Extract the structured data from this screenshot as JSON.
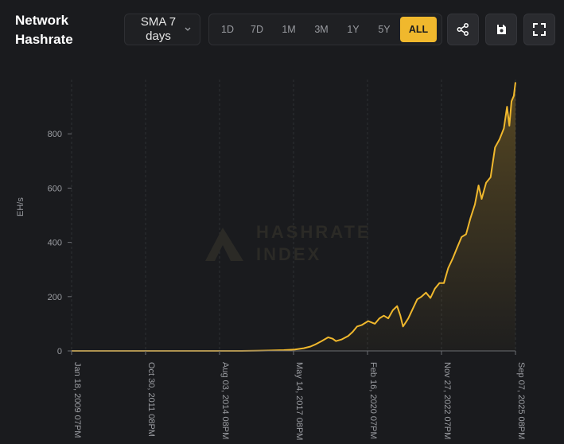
{
  "header": {
    "title": "Network Hashrate",
    "sma_select": "SMA 7 days",
    "ranges": [
      "1D",
      "7D",
      "1M",
      "3M",
      "1Y",
      "5Y",
      "ALL"
    ],
    "active_range": "ALL"
  },
  "toolbar": {
    "icons": [
      "share-icon",
      "save-icon",
      "fullscreen-icon"
    ]
  },
  "watermark": {
    "line1": "HASHRATE",
    "line2": "INDEX"
  },
  "colors": {
    "accent": "#f0b82d",
    "background": "#1a1b1e",
    "line": "#f0b82d"
  },
  "chart_data": {
    "type": "area",
    "title": "Network Hashrate",
    "ylabel": "EH/s",
    "xlabel": "",
    "ylim": [
      0,
      1000
    ],
    "yticks": [
      0,
      200,
      400,
      600,
      800
    ],
    "xticks": [
      "Jan 18, 2009 07PM",
      "Oct 30, 2011 08PM",
      "Aug 03, 2014 08PM",
      "May 14, 2017 08PM",
      "Feb 16, 2020 07PM",
      "Nov 27, 2022 07PM",
      "Sep 07, 2025 08PM"
    ],
    "grid": "vertical-dashed",
    "series": [
      {
        "x": [
          "2009-01-18",
          "2013-01-01",
          "2015-06-01",
          "2016-01-01",
          "2016-06-01",
          "2017-01-01",
          "2017-06-01",
          "2017-10-01",
          "2018-01-01",
          "2018-03-01",
          "2018-06-01",
          "2018-09-01",
          "2018-11-01",
          "2018-12-15",
          "2019-03-01",
          "2019-06-01",
          "2019-08-01",
          "2019-10-01",
          "2019-12-01",
          "2020-03-01",
          "2020-04-15",
          "2020-06-01",
          "2020-08-01",
          "2020-10-01",
          "2020-12-01",
          "2021-02-01",
          "2021-04-01",
          "2021-05-15",
          "2021-06-20",
          "2021-07-15",
          "2021-09-01",
          "2021-11-01",
          "2022-01-01",
          "2022-03-01",
          "2022-05-01",
          "2022-07-01",
          "2022-09-01",
          "2022-11-01",
          "2023-01-01",
          "2023-03-01",
          "2023-05-01",
          "2023-07-01",
          "2023-09-01",
          "2023-11-01",
          "2024-01-01",
          "2024-03-01",
          "2024-04-20",
          "2024-06-01",
          "2024-08-01",
          "2024-10-01",
          "2024-12-01",
          "2025-02-01",
          "2025-04-01",
          "2025-05-15",
          "2025-06-15",
          "2025-07-15",
          "2025-08-15",
          "2025-09-07"
        ],
        "y": [
          0,
          0,
          0,
          1,
          1.5,
          3,
          5,
          10,
          16,
          23,
          36,
          50,
          45,
          36,
          42,
          55,
          70,
          90,
          95,
          110,
          105,
          100,
          120,
          130,
          120,
          150,
          165,
          130,
          90,
          100,
          120,
          155,
          190,
          200,
          215,
          195,
          230,
          250,
          250,
          305,
          340,
          380,
          420,
          430,
          490,
          540,
          610,
          560,
          620,
          640,
          750,
          780,
          820,
          900,
          830,
          920,
          940,
          990
        ]
      }
    ]
  }
}
